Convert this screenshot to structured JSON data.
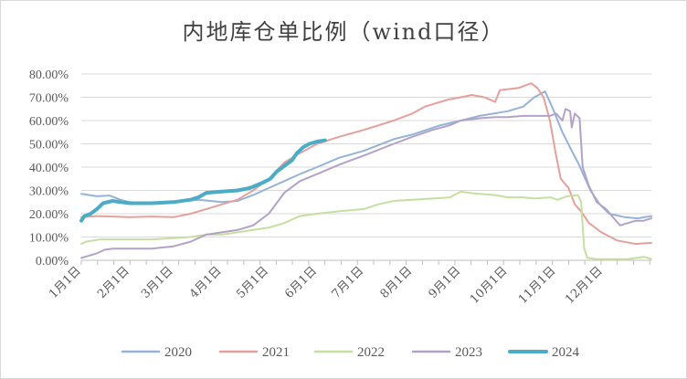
{
  "chart_data": {
    "type": "line",
    "title": "内地库仓单比例（wind口径）",
    "xlabel": "",
    "ylabel": "",
    "y_ticks": [
      "0.00%",
      "10.00%",
      "20.00%",
      "30.00%",
      "40.00%",
      "50.00%",
      "60.00%",
      "70.00%",
      "80.00%"
    ],
    "ylim": [
      0,
      80
    ],
    "x_ticks": [
      "1月1日",
      "2月1日",
      "3月1日",
      "4月1日",
      "5月1日",
      "6月1日",
      "7月1日",
      "8月1日",
      "9月1日",
      "10月1日",
      "11月1日",
      "12月1日"
    ],
    "x_domain_days": [
      0,
      365
    ],
    "grid": "horizontal",
    "legend_position": "bottom",
    "series": [
      {
        "name": "2020",
        "color": "#95b3d7",
        "width": 2,
        "points": [
          [
            0,
            28.5
          ],
          [
            10,
            27.5
          ],
          [
            18,
            27.8
          ],
          [
            25,
            26
          ],
          [
            31,
            25
          ],
          [
            45,
            24.5
          ],
          [
            59,
            25
          ],
          [
            75,
            26
          ],
          [
            90,
            25
          ],
          [
            100,
            25.5
          ],
          [
            110,
            28
          ],
          [
            120,
            31
          ],
          [
            130,
            34
          ],
          [
            140,
            37
          ],
          [
            151,
            40
          ],
          [
            165,
            44
          ],
          [
            181,
            47
          ],
          [
            200,
            52
          ],
          [
            212,
            54
          ],
          [
            230,
            58
          ],
          [
            243,
            60
          ],
          [
            255,
            62
          ],
          [
            273,
            64
          ],
          [
            283,
            66
          ],
          [
            290,
            70
          ],
          [
            297,
            72.5
          ],
          [
            302,
            65
          ],
          [
            308,
            55
          ],
          [
            314,
            47
          ],
          [
            318,
            42
          ],
          [
            322,
            36
          ],
          [
            326,
            30
          ],
          [
            332,
            24
          ],
          [
            338,
            20
          ],
          [
            348,
            18.5
          ],
          [
            356,
            18
          ],
          [
            365,
            19
          ]
        ]
      },
      {
        "name": "2021",
        "color": "#e6a09c",
        "width": 2,
        "points": [
          [
            0,
            18.5
          ],
          [
            10,
            19
          ],
          [
            20,
            18.8
          ],
          [
            31,
            18.5
          ],
          [
            45,
            18.8
          ],
          [
            59,
            18.5
          ],
          [
            70,
            20
          ],
          [
            80,
            22
          ],
          [
            90,
            24
          ],
          [
            100,
            26
          ],
          [
            110,
            30
          ],
          [
            120,
            35
          ],
          [
            130,
            42
          ],
          [
            140,
            46
          ],
          [
            151,
            50
          ],
          [
            165,
            53
          ],
          [
            181,
            56
          ],
          [
            200,
            60
          ],
          [
            212,
            63
          ],
          [
            220,
            66
          ],
          [
            235,
            69
          ],
          [
            243,
            70
          ],
          [
            250,
            71
          ],
          [
            258,
            70
          ],
          [
            265,
            68
          ],
          [
            268,
            73
          ],
          [
            280,
            74
          ],
          [
            288,
            76
          ],
          [
            292,
            74
          ],
          [
            296,
            70
          ],
          [
            300,
            60
          ],
          [
            304,
            45
          ],
          [
            307,
            35
          ],
          [
            312,
            31
          ],
          [
            316,
            24
          ],
          [
            320,
            21
          ],
          [
            325,
            16
          ],
          [
            333,
            12
          ],
          [
            343,
            8.5
          ],
          [
            355,
            7
          ],
          [
            365,
            7.5
          ]
        ]
      },
      {
        "name": "2022",
        "color": "#c5dfa0",
        "width": 2,
        "points": [
          [
            0,
            7
          ],
          [
            3,
            8
          ],
          [
            8,
            8.5
          ],
          [
            12,
            9
          ],
          [
            31,
            9
          ],
          [
            45,
            9
          ],
          [
            59,
            9.5
          ],
          [
            70,
            10
          ],
          [
            80,
            11
          ],
          [
            90,
            11
          ],
          [
            100,
            12
          ],
          [
            110,
            13
          ],
          [
            120,
            14
          ],
          [
            130,
            16
          ],
          [
            140,
            19
          ],
          [
            151,
            20
          ],
          [
            165,
            21
          ],
          [
            181,
            22
          ],
          [
            190,
            24
          ],
          [
            200,
            25.5
          ],
          [
            212,
            26
          ],
          [
            225,
            26.5
          ],
          [
            236,
            27
          ],
          [
            243,
            29.5
          ],
          [
            248,
            29
          ],
          [
            255,
            28.5
          ],
          [
            265,
            28
          ],
          [
            273,
            27
          ],
          [
            283,
            27
          ],
          [
            290,
            26.5
          ],
          [
            300,
            27
          ],
          [
            305,
            26
          ],
          [
            311,
            27.5
          ],
          [
            318,
            28
          ],
          [
            320,
            25
          ],
          [
            321,
            15
          ],
          [
            322,
            5
          ],
          [
            324,
            1
          ],
          [
            330,
            0.5
          ],
          [
            340,
            0.5
          ],
          [
            350,
            0.5
          ],
          [
            360,
            1.5
          ],
          [
            365,
            0.5
          ]
        ]
      },
      {
        "name": "2023",
        "color": "#b3a2c7",
        "width": 2,
        "points": [
          [
            0,
            1
          ],
          [
            5,
            2
          ],
          [
            10,
            3
          ],
          [
            15,
            4.5
          ],
          [
            20,
            5
          ],
          [
            31,
            5
          ],
          [
            45,
            5
          ],
          [
            59,
            6
          ],
          [
            70,
            8
          ],
          [
            80,
            11
          ],
          [
            90,
            12
          ],
          [
            100,
            13
          ],
          [
            110,
            15
          ],
          [
            120,
            20
          ],
          [
            130,
            29
          ],
          [
            140,
            34
          ],
          [
            151,
            37
          ],
          [
            165,
            41
          ],
          [
            181,
            45
          ],
          [
            200,
            50
          ],
          [
            212,
            53
          ],
          [
            225,
            56
          ],
          [
            236,
            58
          ],
          [
            243,
            60
          ],
          [
            255,
            61
          ],
          [
            265,
            61.5
          ],
          [
            273,
            61.5
          ],
          [
            283,
            62
          ],
          [
            290,
            62
          ],
          [
            300,
            62
          ],
          [
            304,
            63
          ],
          [
            308,
            60
          ],
          [
            310,
            65
          ],
          [
            313,
            64
          ],
          [
            314,
            57
          ],
          [
            316,
            63
          ],
          [
            319,
            61
          ],
          [
            321,
            40
          ],
          [
            325,
            32
          ],
          [
            330,
            25
          ],
          [
            336,
            22
          ],
          [
            341,
            18
          ],
          [
            345,
            15
          ],
          [
            350,
            16
          ],
          [
            355,
            17
          ],
          [
            360,
            17
          ],
          [
            365,
            18
          ]
        ]
      },
      {
        "name": "2024",
        "color": "#4bacc6",
        "width": 4,
        "points": [
          [
            0,
            17
          ],
          [
            2,
            19
          ],
          [
            6,
            20
          ],
          [
            10,
            22
          ],
          [
            14,
            24.5
          ],
          [
            20,
            25.5
          ],
          [
            25,
            25
          ],
          [
            31,
            24.5
          ],
          [
            45,
            24.5
          ],
          [
            59,
            25
          ],
          [
            70,
            26
          ],
          [
            75,
            27
          ],
          [
            80,
            29
          ],
          [
            90,
            29.5
          ],
          [
            100,
            30
          ],
          [
            108,
            31
          ],
          [
            115,
            33
          ],
          [
            121,
            35
          ],
          [
            125,
            38
          ],
          [
            131,
            41
          ],
          [
            135,
            43
          ],
          [
            138,
            46
          ],
          [
            142,
            48.5
          ],
          [
            146,
            50
          ],
          [
            151,
            51
          ],
          [
            156,
            51.5
          ]
        ]
      }
    ]
  }
}
